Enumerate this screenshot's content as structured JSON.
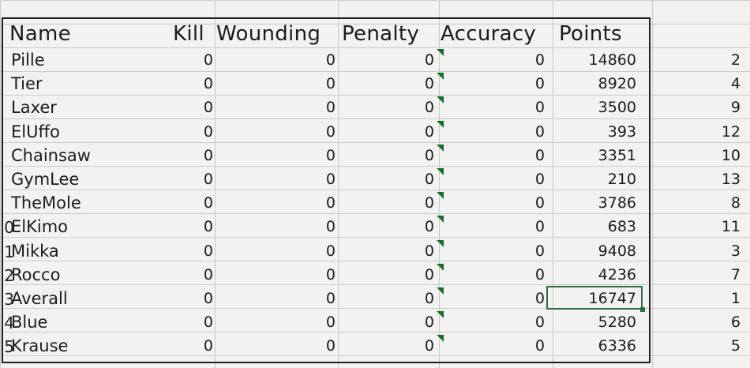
{
  "headers": {
    "name": "Name",
    "kill": "Kill",
    "wounding": "Wounding",
    "penalty": "Penalty",
    "accuracy": "Accuracy",
    "points": "Points"
  },
  "rows": [
    {
      "rownum": "",
      "name": "Pille",
      "kill": "0",
      "wounding": "0",
      "penalty": "0",
      "accuracy": "0",
      "points": "14860",
      "rank": "2"
    },
    {
      "rownum": "",
      "name": "Tier",
      "kill": "0",
      "wounding": "0",
      "penalty": "0",
      "accuracy": "0",
      "points": "8920",
      "rank": "4"
    },
    {
      "rownum": "",
      "name": "Laxer",
      "kill": "0",
      "wounding": "0",
      "penalty": "0",
      "accuracy": "0",
      "points": "3500",
      "rank": "9"
    },
    {
      "rownum": "",
      "name": "ElUffo",
      "kill": "0",
      "wounding": "0",
      "penalty": "0",
      "accuracy": "0",
      "points": "393",
      "rank": "12"
    },
    {
      "rownum": "",
      "name": "Chainsaw",
      "kill": "0",
      "wounding": "0",
      "penalty": "0",
      "accuracy": "0",
      "points": "3351",
      "rank": "10"
    },
    {
      "rownum": "",
      "name": "GymLee",
      "kill": "0",
      "wounding": "0",
      "penalty": "0",
      "accuracy": "0",
      "points": "210",
      "rank": "13"
    },
    {
      "rownum": "",
      "name": "TheMole",
      "kill": "0",
      "wounding": "0",
      "penalty": "0",
      "accuracy": "0",
      "points": "3786",
      "rank": "8"
    },
    {
      "rownum": "0",
      "name": "ElKimo",
      "kill": "0",
      "wounding": "0",
      "penalty": "0",
      "accuracy": "0",
      "points": "683",
      "rank": "11"
    },
    {
      "rownum": "1",
      "name": "Mikka",
      "kill": "0",
      "wounding": "0",
      "penalty": "0",
      "accuracy": "0",
      "points": "9408",
      "rank": "3"
    },
    {
      "rownum": "2",
      "name": "Rocco",
      "kill": "0",
      "wounding": "0",
      "penalty": "0",
      "accuracy": "0",
      "points": "4236",
      "rank": "7"
    },
    {
      "rownum": "3",
      "name": "Averall",
      "kill": "0",
      "wounding": "0",
      "penalty": "0",
      "accuracy": "0",
      "points": "16747",
      "rank": "1"
    },
    {
      "rownum": "4",
      "name": "Blue",
      "kill": "0",
      "wounding": "0",
      "penalty": "0",
      "accuracy": "0",
      "points": "5280",
      "rank": "6"
    },
    {
      "rownum": "5",
      "name": "Krause",
      "kill": "0",
      "wounding": "0",
      "penalty": "0",
      "accuracy": "0",
      "points": "6336",
      "rank": "5"
    }
  ],
  "colors": {
    "comment_marker": "#1d6b2c",
    "selection": "#2f6b43"
  }
}
